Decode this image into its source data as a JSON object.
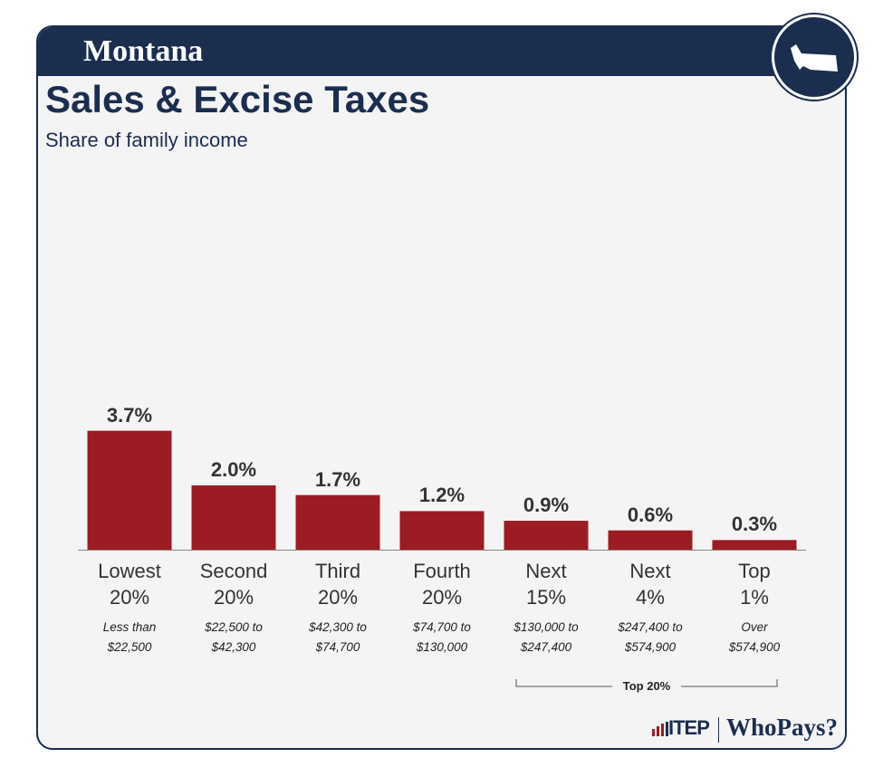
{
  "header": {
    "state": "Montana"
  },
  "chart_data": {
    "type": "bar",
    "title": "Sales & Excise Taxes",
    "subtitle": "Share of family income",
    "categories": [
      "Lowest 20%",
      "Second 20%",
      "Third 20%",
      "Fourth 20%",
      "Next 15%",
      "Next 4%",
      "Top 1%"
    ],
    "income_ranges": [
      "Less than $22,500",
      "$22,500 to $42,300",
      "$42,300 to $74,700",
      "$74,700 to $130,000",
      "$130,000 to $247,400",
      "$247,400 to $574,900",
      "Over $574,900"
    ],
    "values": [
      3.7,
      2.0,
      1.7,
      1.2,
      0.9,
      0.6,
      0.3
    ],
    "value_labels": [
      "3.7%",
      "2.0%",
      "1.7%",
      "1.2%",
      "0.9%",
      "0.6%",
      "0.3%"
    ],
    "color": "#9b1c23",
    "bracket_label": "Top 20%"
  },
  "footer": {
    "org": "ITEP",
    "brand": "WhoPays?"
  }
}
